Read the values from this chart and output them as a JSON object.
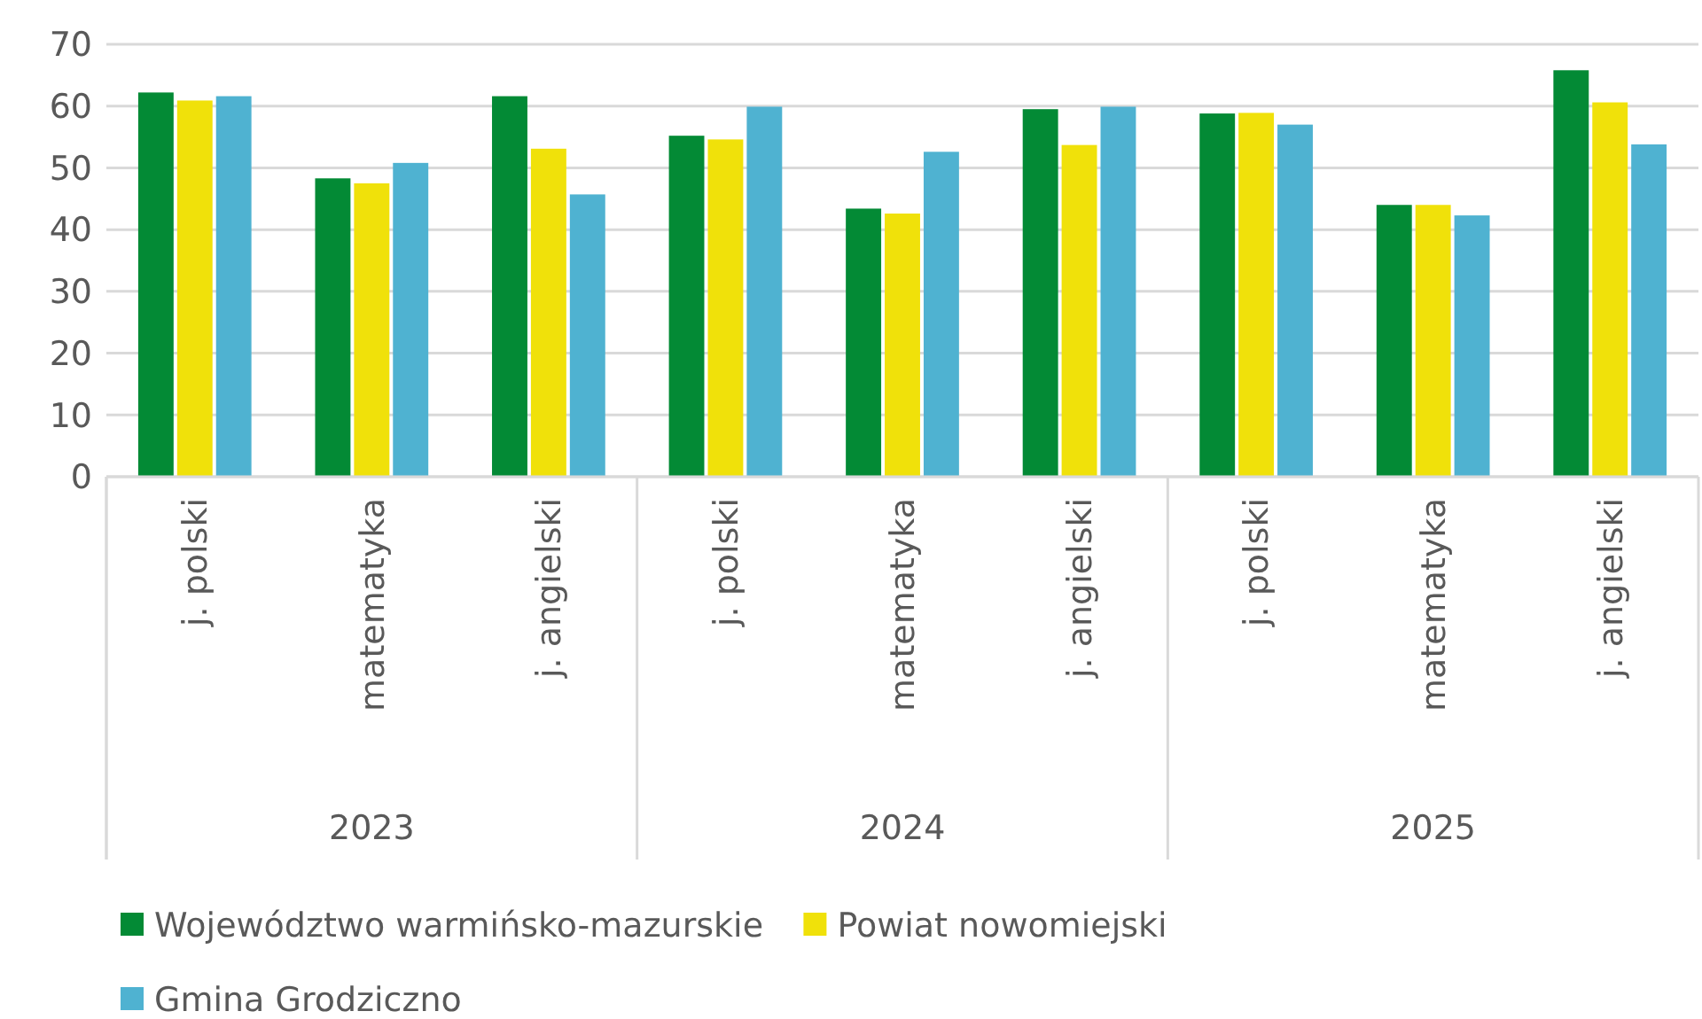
{
  "chart_data": {
    "type": "bar",
    "categories": [
      "j. polski",
      "matematyka",
      "j. angielski",
      "j. polski",
      "matematyka",
      "j. angielski",
      "j. polski",
      "matematyka",
      "j. angielski"
    ],
    "annotations": [
      "2023",
      "2024",
      "2025"
    ],
    "series": [
      {
        "name": "Województwo warmińsko-mazurskie",
        "color": "#038a35",
        "values": [
          62.2,
          48.3,
          61.6,
          55.2,
          43.4,
          59.5,
          58.8,
          44.0,
          65.8
        ]
      },
      {
        "name": "Powiat nowomiejski",
        "color": "#f0e10a",
        "values": [
          60.9,
          47.5,
          53.1,
          54.6,
          42.6,
          53.7,
          58.9,
          44.0,
          60.6
        ]
      },
      {
        "name": "Gmina Grodziczno",
        "color": "#4fb2d1",
        "values": [
          61.6,
          50.8,
          45.7,
          59.9,
          52.6,
          59.9,
          57.0,
          42.3,
          53.8
        ]
      }
    ],
    "ylim": [
      0,
      70
    ],
    "yticks": [
      0,
      10,
      20,
      30,
      40,
      50,
      60,
      70
    ],
    "grid": "y",
    "legend": "bottom"
  }
}
